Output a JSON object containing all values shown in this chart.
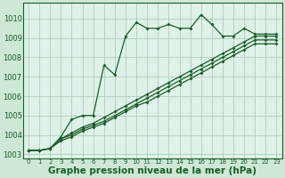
{
  "bg_color": "#cde8d4",
  "plot_bg_color": "#dff2e8",
  "grid_color": "#b0ccbb",
  "line_color": "#1a5c2a",
  "xlabel": "Graphe pression niveau de la mer (hPa)",
  "xlabel_fontsize": 7.5,
  "ylim": [
    1002.8,
    1010.8
  ],
  "xlim": [
    -0.5,
    23.5
  ],
  "yticks": [
    1003,
    1004,
    1005,
    1006,
    1007,
    1008,
    1009,
    1010
  ],
  "xticks": [
    0,
    1,
    2,
    3,
    4,
    5,
    6,
    7,
    8,
    9,
    10,
    11,
    12,
    13,
    14,
    15,
    16,
    17,
    18,
    19,
    20,
    21,
    22,
    23
  ],
  "series": [
    [
      1003.2,
      1003.2,
      1003.3,
      1003.9,
      1004.8,
      1005.0,
      1005.0,
      1007.6,
      1007.1,
      1009.1,
      1009.8,
      1009.5,
      1009.5,
      1009.7,
      1009.5,
      1009.5,
      1010.2,
      1009.7,
      1009.1,
      1009.1,
      1009.5,
      1009.2,
      1009.2,
      1009.2
    ],
    [
      1003.2,
      1003.2,
      1003.3,
      1003.8,
      1004.1,
      1004.4,
      1004.6,
      1004.9,
      1005.2,
      1005.5,
      1005.8,
      1006.1,
      1006.4,
      1006.7,
      1007.0,
      1007.3,
      1007.6,
      1007.9,
      1008.2,
      1008.5,
      1008.8,
      1009.1,
      1009.1,
      1009.1
    ],
    [
      1003.2,
      1003.2,
      1003.3,
      1003.8,
      1004.0,
      1004.3,
      1004.5,
      1004.7,
      1005.0,
      1005.3,
      1005.6,
      1005.9,
      1006.2,
      1006.5,
      1006.8,
      1007.1,
      1007.4,
      1007.7,
      1008.0,
      1008.3,
      1008.6,
      1008.9,
      1008.9,
      1008.9
    ],
    [
      1003.2,
      1003.2,
      1003.3,
      1003.7,
      1003.9,
      1004.2,
      1004.4,
      1004.6,
      1004.9,
      1005.2,
      1005.5,
      1005.7,
      1006.0,
      1006.3,
      1006.6,
      1006.9,
      1007.2,
      1007.5,
      1007.8,
      1008.1,
      1008.4,
      1008.7,
      1008.7,
      1008.7
    ]
  ]
}
